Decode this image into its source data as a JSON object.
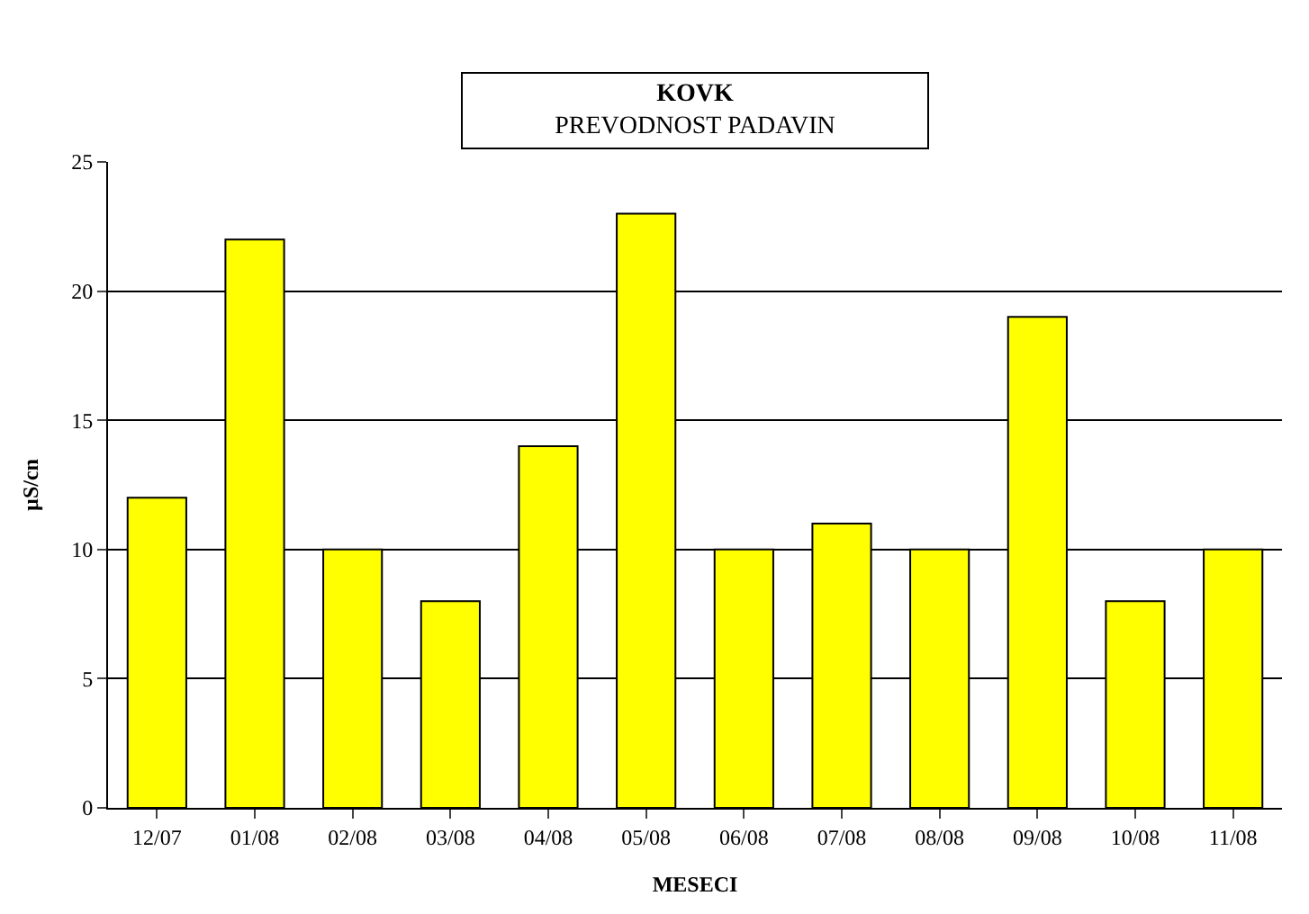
{
  "chart_data": {
    "type": "bar",
    "title": "KOVK",
    "subtitle": "PREVODNOST PADAVIN",
    "xlabel": "MESECI",
    "ylabel": "µS/cn",
    "categories": [
      "12/07",
      "01/08",
      "02/08",
      "03/08",
      "04/08",
      "05/08",
      "06/08",
      "07/08",
      "08/08",
      "09/08",
      "10/08",
      "11/08"
    ],
    "values": [
      12,
      22,
      10,
      8,
      14,
      23,
      10,
      11,
      10,
      19,
      8,
      10
    ],
    "color": "#ffff00",
    "ylim": [
      0,
      25
    ],
    "yticks": [
      0,
      5,
      10,
      15,
      20,
      25
    ],
    "grid": "y"
  }
}
